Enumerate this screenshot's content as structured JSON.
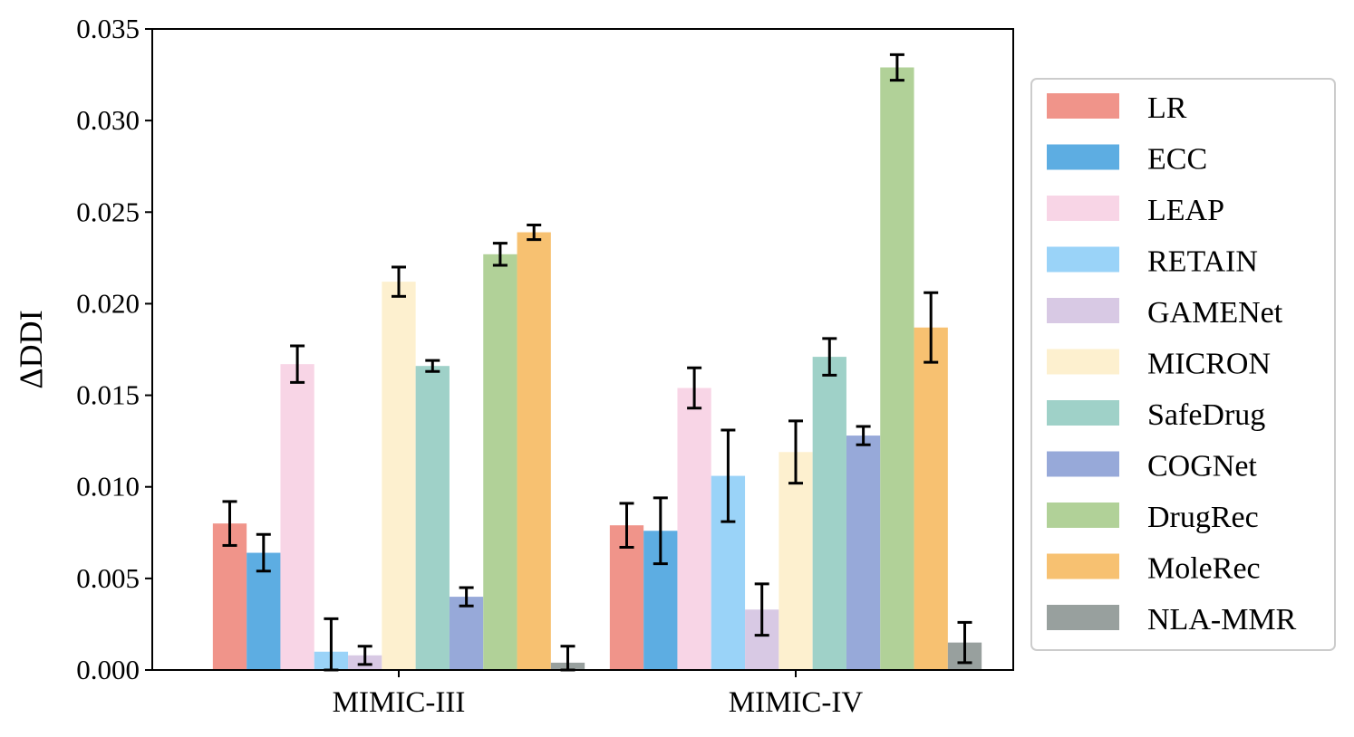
{
  "chart_data": {
    "type": "bar",
    "title": "",
    "xlabel": "",
    "ylabel": "ΔDDI",
    "ylim": [
      0,
      0.035
    ],
    "yticks": [
      "0.000",
      "0.005",
      "0.010",
      "0.015",
      "0.020",
      "0.025",
      "0.030",
      "0.035"
    ],
    "categories": [
      "MIMIC-III",
      "MIMIC-IV"
    ],
    "legend_position": "right-outside",
    "grid": false,
    "series": [
      {
        "name": "LR",
        "color": "#f0948a",
        "values": [
          0.008,
          0.0079
        ],
        "errors": [
          0.0012,
          0.0012
        ]
      },
      {
        "name": "ECC",
        "color": "#5dade2",
        "values": [
          0.0064,
          0.0076
        ],
        "errors": [
          0.001,
          0.0018
        ]
      },
      {
        "name": "LEAP",
        "color": "#f8d5e6",
        "values": [
          0.0167,
          0.0154
        ],
        "errors": [
          0.001,
          0.0011
        ]
      },
      {
        "name": "RETAIN",
        "color": "#9ad3f8",
        "values": [
          0.001,
          0.0106
        ],
        "errors": [
          0.0018,
          0.0025
        ]
      },
      {
        "name": "GAMENet",
        "color": "#d8c9e4",
        "values": [
          0.0008,
          0.0033
        ],
        "errors": [
          0.0005,
          0.0014
        ]
      },
      {
        "name": "MICRON",
        "color": "#fdf0cf",
        "values": [
          0.0212,
          0.0119
        ],
        "errors": [
          0.0008,
          0.0017
        ]
      },
      {
        "name": "SafeDrug",
        "color": "#9fd1c8",
        "values": [
          0.0166,
          0.0171
        ],
        "errors": [
          0.0003,
          0.001
        ]
      },
      {
        "name": "COGNet",
        "color": "#97a9d9",
        "values": [
          0.004,
          0.0128
        ],
        "errors": [
          0.0005,
          0.0005
        ]
      },
      {
        "name": "DrugRec",
        "color": "#b1d198",
        "values": [
          0.0227,
          0.0329
        ],
        "errors": [
          0.0006,
          0.0007
        ]
      },
      {
        "name": "MoleRec",
        "color": "#f7c171",
        "values": [
          0.0239,
          0.0187
        ],
        "errors": [
          0.0004,
          0.0019
        ]
      },
      {
        "name": "NLA-MMR",
        "color": "#98a09e",
        "values": [
          0.0004,
          0.0015
        ],
        "errors": [
          0.0009,
          0.0011
        ]
      }
    ]
  }
}
